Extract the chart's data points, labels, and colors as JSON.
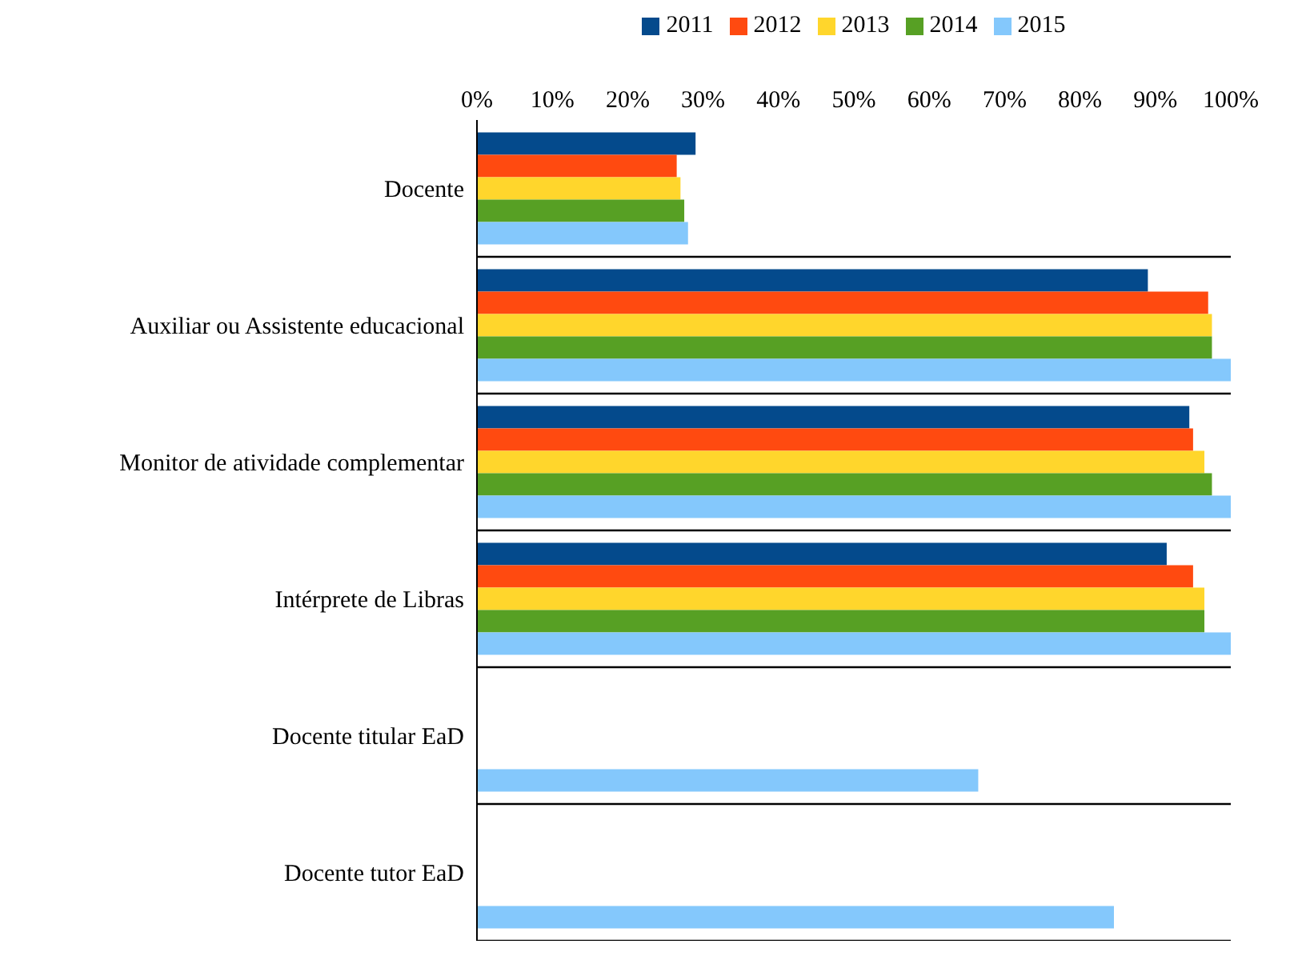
{
  "chart_data": {
    "type": "bar",
    "orientation": "horizontal",
    "categories": [
      "Docente",
      "Auxiliar ou Assistente educacional",
      "Monitor de atividade complementar",
      "Intérprete de Libras",
      "Docente titular EaD",
      "Docente tutor EaD"
    ],
    "series": [
      {
        "name": "2011",
        "color": "#044a8c",
        "values": [
          29,
          89,
          94.5,
          91.5,
          null,
          null
        ]
      },
      {
        "name": "2012",
        "color": "#ff4a10",
        "values": [
          26.5,
          97,
          95,
          95,
          null,
          null
        ]
      },
      {
        "name": "2013",
        "color": "#ffd62c",
        "values": [
          27,
          97.5,
          96.5,
          96.5,
          null,
          null
        ]
      },
      {
        "name": "2014",
        "color": "#57a024",
        "values": [
          27.5,
          97.5,
          97.5,
          96.5,
          null,
          null
        ]
      },
      {
        "name": "2015",
        "color": "#84c8fc",
        "values": [
          28,
          100,
          100,
          100,
          66.5,
          84.5
        ]
      }
    ],
    "xlim": [
      0,
      100
    ],
    "xticks": [
      {
        "value": 0,
        "label": "0%"
      },
      {
        "value": 10,
        "label": "10%"
      },
      {
        "value": 20,
        "label": "20%"
      },
      {
        "value": 30,
        "label": "30%"
      },
      {
        "value": 40,
        "label": "40%"
      },
      {
        "value": 50,
        "label": "50%"
      },
      {
        "value": 60,
        "label": "60%"
      },
      {
        "value": 70,
        "label": "70%"
      },
      {
        "value": 80,
        "label": "80%"
      },
      {
        "value": 90,
        "label": "90%"
      },
      {
        "value": 100,
        "label": "100%"
      }
    ],
    "grid": "y",
    "legend": "top"
  }
}
